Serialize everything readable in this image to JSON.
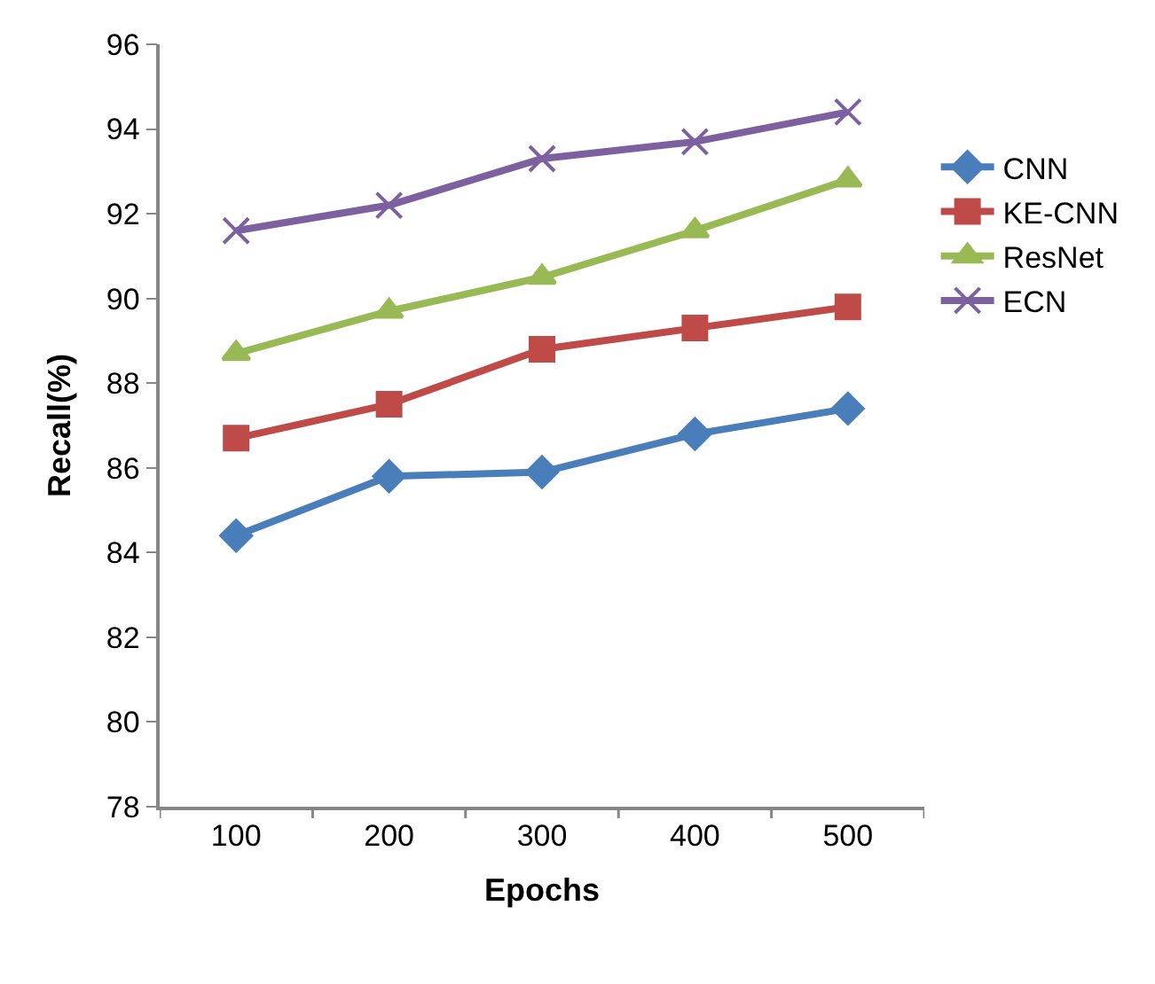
{
  "chart_data": {
    "type": "line",
    "xlabel": "Epochs",
    "ylabel": "Recall(%)",
    "categories": [
      "100",
      "200",
      "300",
      "400",
      "500"
    ],
    "ylim": [
      78,
      96
    ],
    "yticks": [
      78,
      80,
      82,
      84,
      86,
      88,
      90,
      92,
      94,
      96
    ],
    "legend": "right",
    "series": [
      {
        "name": "CNN",
        "color": "#4a7ebb",
        "marker": "diamond",
        "values": [
          84.4,
          85.8,
          85.9,
          86.8,
          87.4
        ]
      },
      {
        "name": "KE-CNN",
        "color": "#be4b48",
        "marker": "square",
        "values": [
          86.7,
          87.5,
          88.8,
          89.3,
          89.8
        ]
      },
      {
        "name": "ResNet",
        "color": "#98b954",
        "marker": "triangle",
        "values": [
          88.7,
          89.7,
          90.5,
          91.6,
          92.8
        ]
      },
      {
        "name": "ECN",
        "color": "#7d60a0",
        "marker": "cross",
        "values": [
          91.6,
          92.2,
          93.3,
          93.7,
          94.4
        ]
      }
    ]
  }
}
